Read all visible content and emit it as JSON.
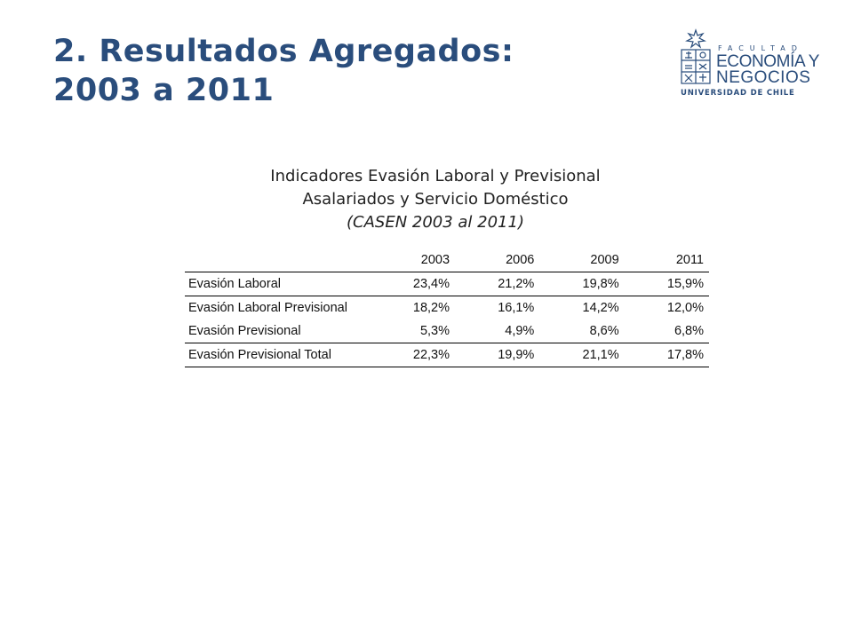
{
  "slide": {
    "title_line1": "2. Resultados Agregados:",
    "title_line2": "2003 a 2011"
  },
  "logo": {
    "facultad": "FACULTAD",
    "line1": "ECONOMÍA Y",
    "line2": "NEGOCIOS",
    "line3": "UNIVERSIDAD DE CHILE",
    "color": "#2a4d7c"
  },
  "caption": {
    "line1": "Indicadores Evasión Laboral y Previsional",
    "line2": "Asalariados y Servicio Doméstico",
    "line3": "(CASEN 2003 al 2011)"
  },
  "table": {
    "columns": [
      "",
      "2003",
      "2006",
      "2009",
      "2011"
    ],
    "rows": [
      {
        "label": "Evasión Laboral",
        "values": [
          "23,4%",
          "21,2%",
          "19,8%",
          "15,9%"
        ]
      },
      {
        "label": "Evasión Laboral Previsional",
        "values": [
          "18,2%",
          "16,1%",
          "14,2%",
          "12,0%"
        ]
      },
      {
        "label": "Evasión Previsional",
        "values": [
          "5,3%",
          "4,9%",
          "8,6%",
          "6,8%"
        ]
      },
      {
        "label": "Evasión Previsional Total",
        "values": [
          "22,3%",
          "19,9%",
          "21,1%",
          "17,8%"
        ]
      }
    ]
  }
}
